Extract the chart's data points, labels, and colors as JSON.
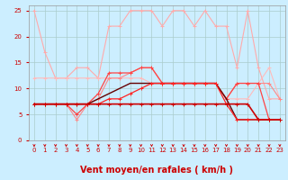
{
  "xlabel": "Vent moyen/en rafales ( km/h )",
  "background_color": "#cceeff",
  "grid_color": "#aacccc",
  "xlim": [
    -0.5,
    23.5
  ],
  "ylim": [
    0,
    26
  ],
  "yticks": [
    0,
    5,
    10,
    15,
    20,
    25
  ],
  "xticks": [
    0,
    1,
    2,
    3,
    4,
    5,
    6,
    7,
    8,
    9,
    10,
    11,
    12,
    13,
    14,
    15,
    16,
    17,
    18,
    19,
    20,
    21,
    22,
    23
  ],
  "x": [
    0,
    1,
    2,
    3,
    4,
    5,
    6,
    7,
    8,
    9,
    10,
    11,
    12,
    13,
    14,
    15,
    16,
    17,
    18,
    19,
    20,
    21,
    22,
    23
  ],
  "series": [
    {
      "y": [
        25,
        17,
        12,
        12,
        14,
        14,
        12,
        22,
        22,
        25,
        25,
        25,
        22,
        25,
        25,
        22,
        25,
        22,
        22,
        14,
        25,
        14,
        8,
        8
      ],
      "color": "#ffaaaa",
      "linewidth": 0.8,
      "marker": "+",
      "markersize": 3,
      "zorder": 2
    },
    {
      "y": [
        12,
        12,
        12,
        12,
        12,
        12,
        12,
        12,
        12,
        12,
        12,
        11,
        11,
        11,
        11,
        11,
        11,
        11,
        8,
        8,
        8,
        11,
        14,
        8
      ],
      "color": "#ffbbbb",
      "linewidth": 0.8,
      "marker": "+",
      "markersize": 3,
      "zorder": 2
    },
    {
      "y": [
        7,
        7,
        7,
        7,
        4,
        7,
        8,
        12,
        12,
        13,
        14,
        14,
        11,
        11,
        11,
        11,
        11,
        11,
        8,
        11,
        11,
        11,
        11,
        8
      ],
      "color": "#ff8888",
      "linewidth": 0.8,
      "marker": "+",
      "markersize": 3,
      "zorder": 3
    },
    {
      "y": [
        7,
        7,
        7,
        7,
        5,
        7,
        9,
        13,
        13,
        13,
        14,
        14,
        11,
        11,
        11,
        11,
        11,
        11,
        8,
        11,
        11,
        11,
        4,
        4
      ],
      "color": "#ff4444",
      "linewidth": 0.9,
      "marker": "+",
      "markersize": 3,
      "zorder": 4
    },
    {
      "y": [
        7,
        7,
        7,
        7,
        7,
        7,
        7,
        7,
        7,
        7,
        7,
        7,
        7,
        7,
        7,
        7,
        7,
        7,
        7,
        7,
        7,
        4,
        4,
        4
      ],
      "color": "#cc0000",
      "linewidth": 1.2,
      "marker": "+",
      "markersize": 3,
      "zorder": 6
    },
    {
      "y": [
        7,
        7,
        7,
        7,
        7,
        7,
        7,
        8,
        8,
        9,
        10,
        11,
        11,
        11,
        11,
        11,
        11,
        11,
        7,
        4,
        4,
        4,
        4,
        4
      ],
      "color": "#ff2222",
      "linewidth": 0.9,
      "marker": "+",
      "markersize": 3,
      "zorder": 5
    },
    {
      "y": [
        7,
        7,
        7,
        7,
        7,
        7,
        8,
        9,
        10,
        11,
        11,
        11,
        11,
        11,
        11,
        11,
        11,
        11,
        8,
        4,
        4,
        4,
        4,
        4
      ],
      "color": "#660000",
      "linewidth": 1.0,
      "marker": null,
      "markersize": 0,
      "zorder": 4
    }
  ],
  "arrow_color": "#cc0000",
  "xlabel_color": "#cc0000",
  "xlabel_fontsize": 7,
  "tick_fontsize": 5
}
